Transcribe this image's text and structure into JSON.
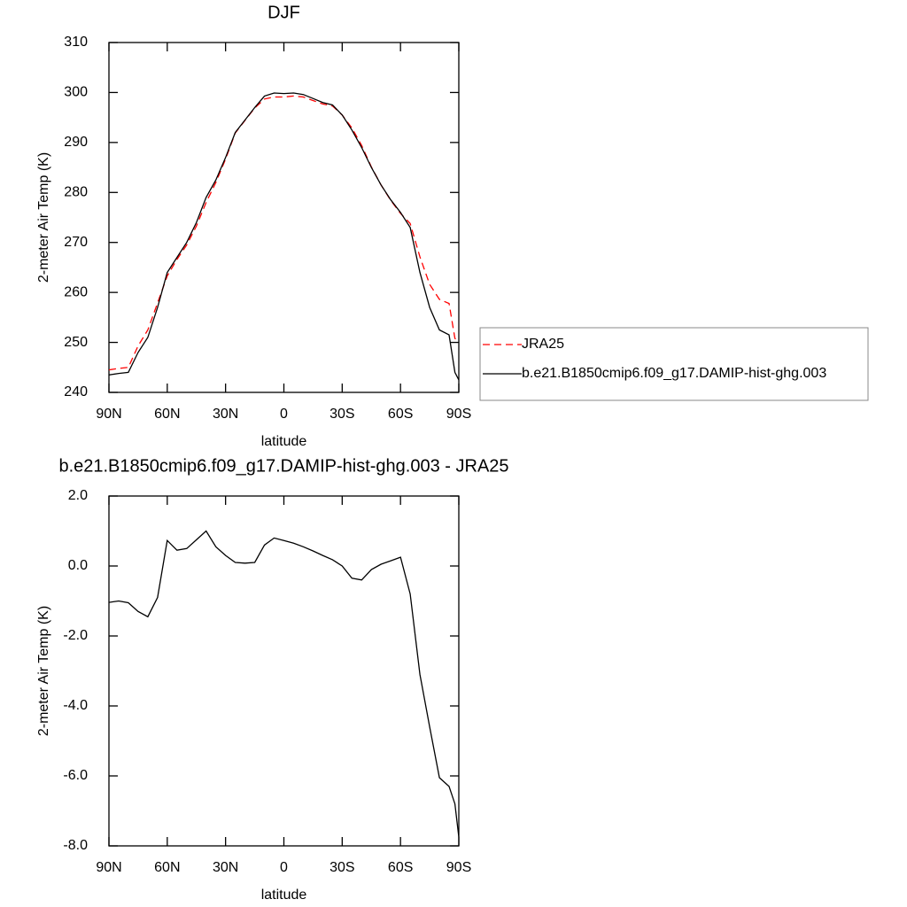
{
  "chart_data": [
    {
      "type": "line",
      "title": "DJF",
      "xlabel": "latitude",
      "ylabel": "2-meter Air Temp (K)",
      "x": [
        90,
        85,
        80,
        75,
        70,
        65,
        60,
        55,
        50,
        45,
        40,
        35,
        30,
        25,
        20,
        15,
        10,
        5,
        0,
        -5,
        -10,
        -15,
        -20,
        -25,
        -30,
        -35,
        -40,
        -45,
        -50,
        -55,
        -60,
        -65,
        -70,
        -75,
        -80,
        -85,
        -88,
        -90
      ],
      "series": [
        {
          "name": "JRA25",
          "color": "#ff0000",
          "line_style": "dashed",
          "values": [
            244.5,
            244.8,
            245,
            249.3,
            252.5,
            257.9,
            263.3,
            266.6,
            269.5,
            273.3,
            278,
            282,
            286.7,
            291.9,
            294.4,
            296.9,
            298.7,
            299.1,
            299.1,
            299.3,
            299.1,
            298.4,
            297.7,
            297.3,
            295.5,
            292.9,
            289.4,
            285.1,
            281.5,
            278.4,
            275.8,
            273.8,
            267.1,
            261.6,
            258.6,
            257.8,
            250.8,
            250.3
          ]
        },
        {
          "name": "b.e21.B1850cmip6.f09_g17.DAMIP-hist-ghg.003",
          "color": "#000000",
          "line_style": "solid",
          "values": [
            243.5,
            243.8,
            244,
            248,
            251,
            257,
            264,
            267,
            270,
            274,
            279,
            282.5,
            287,
            292,
            294.5,
            297,
            299.3,
            299.9,
            299.8,
            299.9,
            299.6,
            298.8,
            298,
            297.5,
            295.5,
            292.5,
            289,
            285,
            281.5,
            278.5,
            276,
            273,
            264,
            257,
            252.5,
            251.5,
            244,
            242.5
          ]
        }
      ],
      "xlim": [
        90,
        -90
      ],
      "xticks": [
        {
          "value": 90,
          "label": "90N"
        },
        {
          "value": 60,
          "label": "60N"
        },
        {
          "value": 30,
          "label": "30N"
        },
        0,
        {
          "value": -30,
          "label": "30S"
        },
        {
          "value": -60,
          "label": "60S"
        },
        {
          "value": -90,
          "label": "90S"
        }
      ],
      "ylim": [
        240,
        310
      ],
      "yticks": [
        240,
        250,
        260,
        270,
        280,
        290,
        300,
        310
      ],
      "legend": "right"
    },
    {
      "type": "line",
      "title": "b.e21.B1850cmip6.f09_g17.DAMIP-hist-ghg.003 - JRA25",
      "xlabel": "latitude",
      "ylabel": "2-meter Air Temp (K)",
      "x": [
        90,
        85,
        80,
        75,
        70,
        65,
        60,
        55,
        50,
        45,
        40,
        35,
        30,
        25,
        20,
        15,
        10,
        5,
        0,
        -5,
        -10,
        -15,
        -20,
        -25,
        -30,
        -35,
        -40,
        -45,
        -50,
        -55,
        -60,
        -65,
        -70,
        -75,
        -80,
        -85,
        -88,
        -90
      ],
      "values": [
        -1.04,
        -1.0,
        -1.05,
        -1.3,
        -1.45,
        -0.9,
        0.73,
        0.45,
        0.5,
        0.75,
        1.0,
        0.55,
        0.3,
        0.1,
        0.08,
        0.1,
        0.6,
        0.8,
        0.73,
        0.65,
        0.55,
        0.43,
        0.3,
        0.18,
        0.0,
        -0.35,
        -0.4,
        -0.1,
        0.05,
        0.15,
        0.25,
        -0.8,
        -3.1,
        -4.6,
        -6.05,
        -6.3,
        -6.8,
        -7.75
      ],
      "color": "#000000",
      "xlim": [
        90,
        -90
      ],
      "xticks": [
        {
          "value": 90,
          "label": "90N"
        },
        {
          "value": 60,
          "label": "60N"
        },
        {
          "value": 30,
          "label": "30N"
        },
        0,
        {
          "value": -30,
          "label": "30S"
        },
        {
          "value": -60,
          "label": "60S"
        },
        {
          "value": -90,
          "label": "90S"
        }
      ],
      "ylim": [
        -8,
        2
      ],
      "yticks": [
        {
          "value": -8,
          "label": "-8.0"
        },
        {
          "value": -6,
          "label": "-6.0"
        },
        {
          "value": -4,
          "label": "-4.0"
        },
        {
          "value": -2,
          "label": "-2.0"
        },
        {
          "value": 0,
          "label": "0.0"
        },
        {
          "value": 2,
          "label": "2.0"
        }
      ]
    }
  ]
}
